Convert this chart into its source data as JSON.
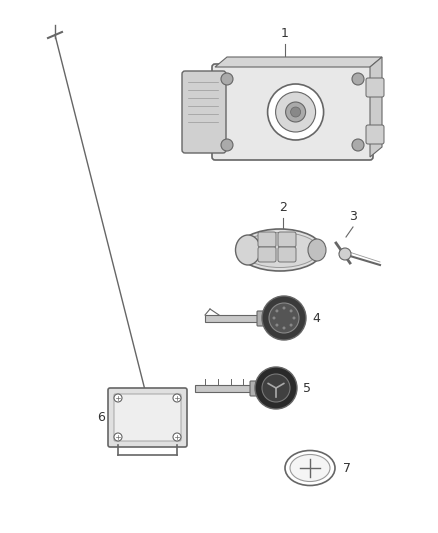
{
  "bg_color": "#ffffff",
  "line_color": "#666666",
  "label_color": "#333333",
  "dark_color": "#444444",
  "mid_color": "#999999",
  "light_color": "#dddddd",
  "fig_w": 4.38,
  "fig_h": 5.33,
  "dpi": 100
}
